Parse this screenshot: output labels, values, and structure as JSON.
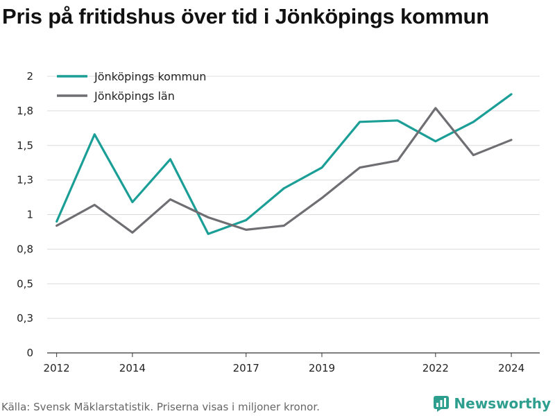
{
  "chart_data": {
    "type": "line",
    "title": "Pris på fritidshus över tid i Jönköpings kommun",
    "x": [
      2012,
      2013,
      2014,
      2015,
      2016,
      2017,
      2018,
      2019,
      2020,
      2021,
      2022,
      2023,
      2024
    ],
    "series": [
      {
        "name": "Jönköpings kommun",
        "color": "#1a9e96",
        "values": [
          0.95,
          1.58,
          1.09,
          1.4,
          0.86,
          0.96,
          1.19,
          1.34,
          1.67,
          1.68,
          1.53,
          1.67,
          1.87
        ]
      },
      {
        "name": "Jönköpings län",
        "color": "#6e6e73",
        "values": [
          0.92,
          1.07,
          0.87,
          1.11,
          0.98,
          0.89,
          0.92,
          1.12,
          1.34,
          1.39,
          1.77,
          1.43,
          1.54
        ]
      }
    ],
    "x_ticks": [
      2012,
      2014,
      2017,
      2019,
      2022,
      2024
    ],
    "y_ticks": [
      {
        "value": 0,
        "label": "0"
      },
      {
        "value": 0.25,
        "label": "0,3"
      },
      {
        "value": 0.5,
        "label": "0,5"
      },
      {
        "value": 0.75,
        "label": "0,8"
      },
      {
        "value": 1.0,
        "label": "1"
      },
      {
        "value": 1.25,
        "label": "1,3"
      },
      {
        "value": 1.5,
        "label": "1,5"
      },
      {
        "value": 1.75,
        "label": "1,8"
      },
      {
        "value": 2.0,
        "label": "2"
      }
    ],
    "xlim": [
      2011.75,
      2024.75
    ],
    "ylim": [
      0,
      2
    ],
    "grid": true,
    "legend_position": "top-left"
  },
  "source_text": "Källa: Svensk Mäklarstatistik. Priserna visas i miljoner kronor.",
  "brand": {
    "name": "Newsworthy",
    "color": "#2e9e8f",
    "icon": "newsworthy-logo-icon"
  }
}
